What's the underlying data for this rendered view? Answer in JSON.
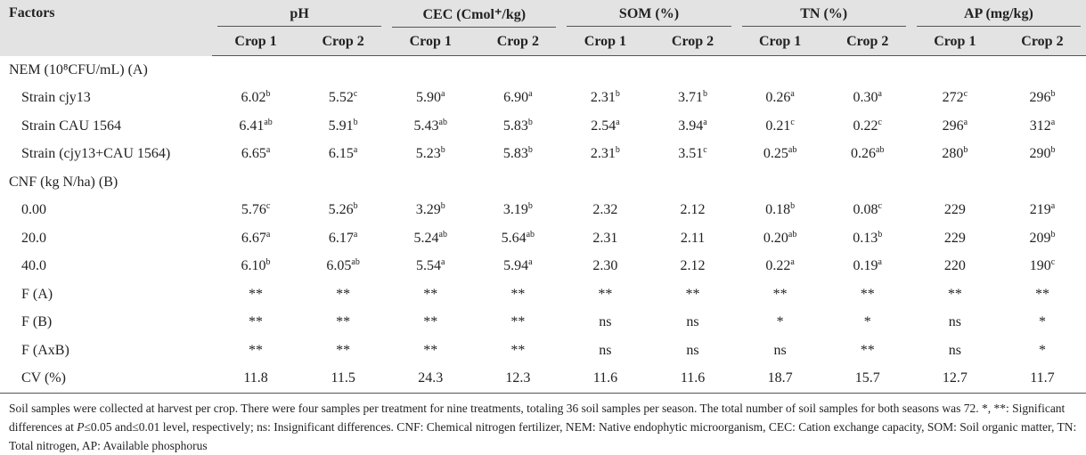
{
  "table": {
    "header": {
      "first": "Factors",
      "groups": [
        "pH",
        "CEC (Cmol⁺/kg)",
        "SOM (%)",
        "TN (%)",
        "AP (mg/kg)"
      ],
      "subs": [
        "Crop 1",
        "Crop 2",
        "Crop 1",
        "Crop 2",
        "Crop 1",
        "Crop 2",
        "Crop 1",
        "Crop 2",
        "Crop 1",
        "Crop 2"
      ]
    },
    "rows": [
      {
        "label": "NEM (10⁸CFU/mL) (A)",
        "section": true
      },
      {
        "label": "Strain cjy13",
        "cells": [
          {
            "text": "6.02",
            "sup": "b"
          },
          {
            "text": "5.52",
            "sup": "c"
          },
          {
            "text": "5.90",
            "sup": "a"
          },
          {
            "text": "6.90",
            "sup": "a"
          },
          {
            "text": "2.31",
            "sup": "b"
          },
          {
            "text": "3.71",
            "sup": "b"
          },
          {
            "text": "0.26",
            "sup": "a"
          },
          {
            "text": "0.30",
            "sup": "a"
          },
          {
            "text": "272",
            "sup": "c"
          },
          {
            "text": "296",
            "sup": "b"
          }
        ]
      },
      {
        "label": "Strain CAU 1564",
        "cells": [
          {
            "text": "6.41",
            "sup": "ab"
          },
          {
            "text": "5.91",
            "sup": "b"
          },
          {
            "text": "5.43",
            "sup": "ab"
          },
          {
            "text": "5.83",
            "sup": "b"
          },
          {
            "text": "2.54",
            "sup": "a"
          },
          {
            "text": "3.94",
            "sup": "a"
          },
          {
            "text": "0.21",
            "sup": "c"
          },
          {
            "text": "0.22",
            "sup": "c"
          },
          {
            "text": "296",
            "sup": "a"
          },
          {
            "text": "312",
            "sup": "a"
          }
        ]
      },
      {
        "label": "Strain (cjy13+CAU 1564)",
        "cells": [
          {
            "text": "6.65",
            "sup": "a"
          },
          {
            "text": "6.15",
            "sup": "a"
          },
          {
            "text": "5.23",
            "sup": "b"
          },
          {
            "text": "5.83",
            "sup": "b"
          },
          {
            "text": "2.31",
            "sup": "b"
          },
          {
            "text": "3.51",
            "sup": "c"
          },
          {
            "text": "0.25",
            "sup": "ab"
          },
          {
            "text": "0.26",
            "sup": "ab"
          },
          {
            "text": "280",
            "sup": "b"
          },
          {
            "text": "290",
            "sup": "b"
          }
        ]
      },
      {
        "label": "CNF (kg N/ha) (B)",
        "section": true
      },
      {
        "label": "0.00",
        "cells": [
          {
            "text": "5.76",
            "sup": "c"
          },
          {
            "text": "5.26",
            "sup": "b"
          },
          {
            "text": "3.29",
            "sup": "b"
          },
          {
            "text": "3.19",
            "sup": "b"
          },
          "2.32",
          "2.12",
          {
            "text": "0.18",
            "sup": "b"
          },
          {
            "text": "0.08",
            "sup": "c"
          },
          "229",
          {
            "text": "219",
            "sup": "a"
          }
        ]
      },
      {
        "label": "20.0",
        "cells": [
          {
            "text": "6.67",
            "sup": "a"
          },
          {
            "text": "6.17",
            "sup": "a"
          },
          {
            "text": "5.24",
            "sup": "ab"
          },
          {
            "text": "5.64",
            "sup": "ab"
          },
          "2.31",
          "2.11",
          {
            "text": "0.20",
            "sup": "ab"
          },
          {
            "text": "0.13",
            "sup": "b"
          },
          "229",
          {
            "text": "209",
            "sup": "b"
          }
        ]
      },
      {
        "label": "40.0",
        "cells": [
          {
            "text": "6.10",
            "sup": "b"
          },
          {
            "text": "6.05",
            "sup": "ab"
          },
          {
            "text": "5.54",
            "sup": "a"
          },
          {
            "text": "5.94",
            "sup": "a"
          },
          "2.30",
          "2.12",
          {
            "text": "0.22",
            "sup": "a"
          },
          {
            "text": "0.19",
            "sup": "a"
          },
          "220",
          {
            "text": "190",
            "sup": "c"
          }
        ]
      },
      {
        "label": "F (A)",
        "cells": [
          "**",
          "**",
          "**",
          "**",
          "**",
          "**",
          "**",
          "**",
          "**",
          "**"
        ]
      },
      {
        "label": "F (B)",
        "cells": [
          "**",
          "**",
          "**",
          "**",
          "ns",
          "ns",
          "*",
          "*",
          "ns",
          "*"
        ]
      },
      {
        "label": "F (AxB)",
        "cells": [
          "**",
          "**",
          "**",
          "**",
          "ns",
          "ns",
          "ns",
          "**",
          "ns",
          "*"
        ]
      },
      {
        "label": "CV (%)",
        "cells": [
          "11.8",
          "11.5",
          "24.3",
          "12.3",
          "11.6",
          "11.6",
          "18.7",
          "15.7",
          "12.7",
          "11.7"
        ]
      }
    ],
    "footnote": [
      "Soil samples were collected at harvest per crop. There were four samples per treatment for nine treatments, totaling 36 soil samples per season. The total number of soil samples for both seasons was 72. *, **: Significant differences at ",
      "P",
      "≤0.05 and≤0.01 level, respectively; ns: Insignificant differences. CNF: Chemical nitrogen fertilizer, NEM: Native endophytic microorganism, CEC: Cation exchange capacity, SOM: Soil organic matter, TN: Total nitrogen, AP: Available phosphorus"
    ]
  }
}
